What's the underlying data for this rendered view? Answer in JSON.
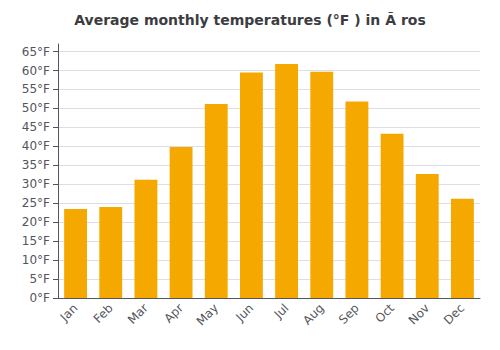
{
  "chart_data": {
    "type": "bar",
    "title": "Average monthly temperatures (°F ) in Ã ros",
    "categories": [
      "Jan",
      "Feb",
      "Mar",
      "Apr",
      "May",
      "Jun",
      "Jul",
      "Aug",
      "Sep",
      "Oct",
      "Nov",
      "Dec"
    ],
    "values": [
      23.5,
      24.0,
      31.2,
      39.8,
      51.2,
      59.5,
      61.7,
      59.7,
      51.8,
      43.3,
      32.7,
      26.2
    ],
    "color": "#F5A800",
    "ylim": [
      0,
      67
    ],
    "yticks": [
      {
        "value": 0,
        "label": "0°F"
      },
      {
        "value": 5,
        "label": "5°F"
      },
      {
        "value": 10,
        "label": "10°F"
      },
      {
        "value": 15,
        "label": "15°F"
      },
      {
        "value": 20,
        "label": "20°F"
      },
      {
        "value": 25,
        "label": "25°F"
      },
      {
        "value": 30,
        "label": "30°F"
      },
      {
        "value": 35,
        "label": "35°F"
      },
      {
        "value": 40,
        "label": "40°F"
      },
      {
        "value": 45,
        "label": "45°F"
      },
      {
        "value": 50,
        "label": "50°F"
      },
      {
        "value": 55,
        "label": "55°F"
      },
      {
        "value": 60,
        "label": "60°F"
      },
      {
        "value": 65,
        "label": "65°F"
      }
    ],
    "grid": true
  }
}
